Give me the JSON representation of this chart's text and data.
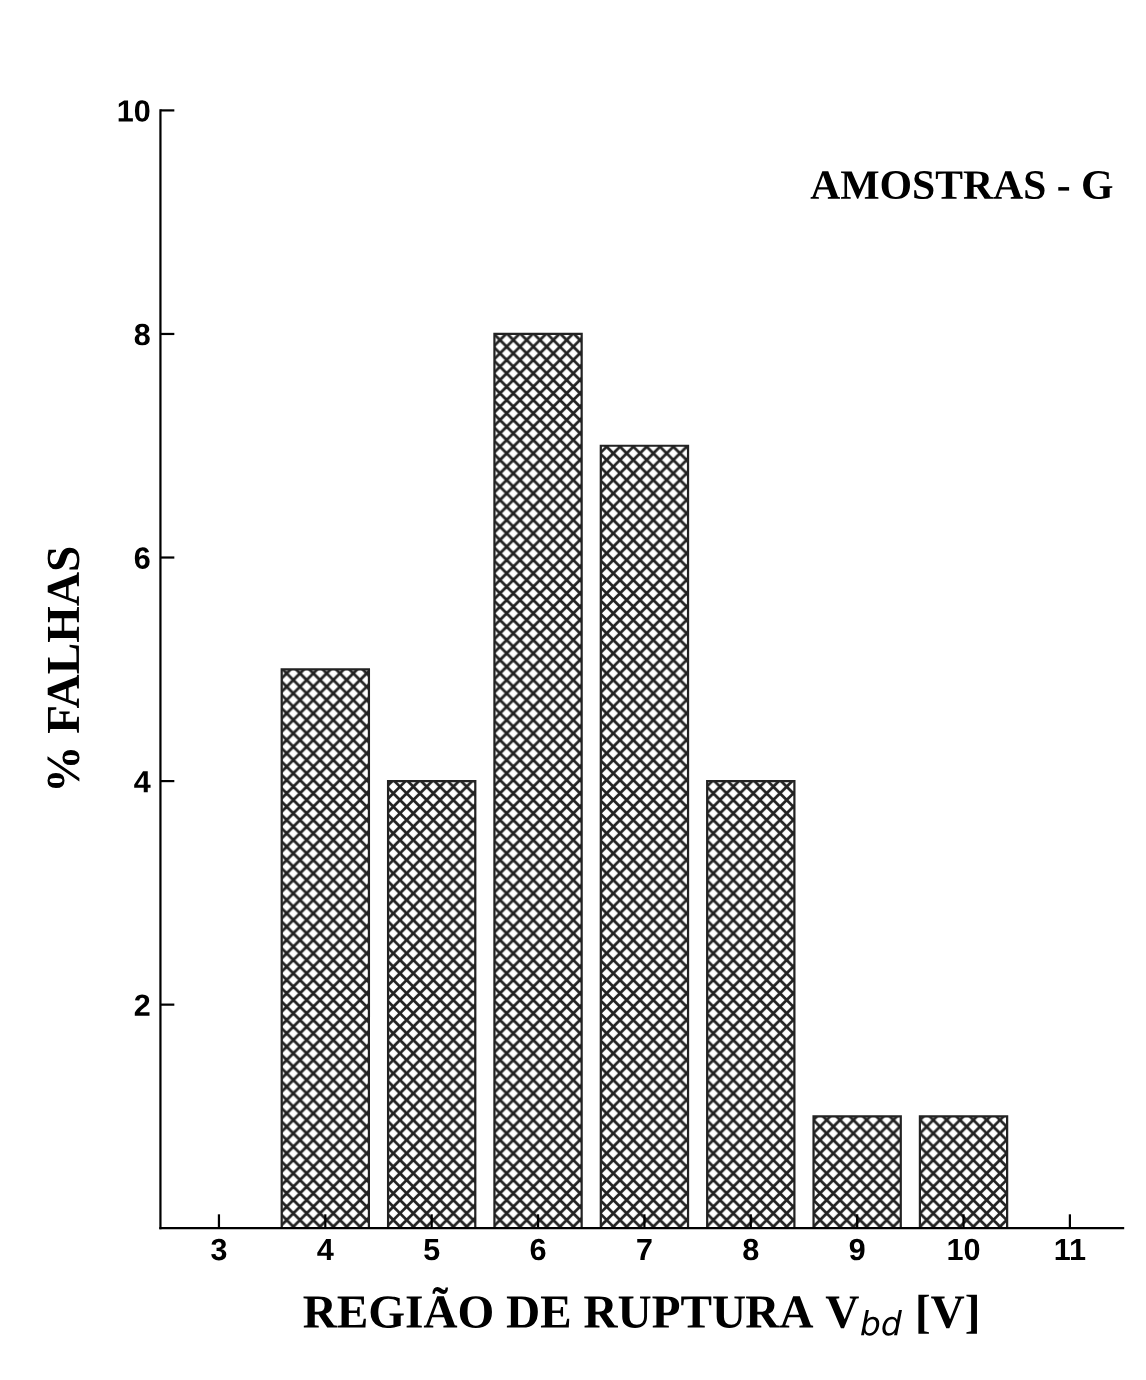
{
  "chart_data": {
    "type": "bar",
    "title": "AMOSTRAS - G",
    "xlabel": "REGIÃO DE RUPTURA V$_{bd}$ [V]",
    "ylabel": "% FALHAS",
    "x": [
      4,
      5,
      6,
      7,
      8,
      9,
      10
    ],
    "values": [
      5,
      4,
      8,
      7,
      4,
      1,
      1
    ],
    "color": "#222222",
    "xlim": [
      2.45,
      11.5
    ],
    "xticks": [
      3,
      4,
      5,
      6,
      7,
      8,
      9,
      10,
      11
    ],
    "ylim": [
      0,
      10
    ],
    "yticks": [
      2,
      4,
      6,
      8,
      10
    ],
    "grid": false,
    "legend": false
  }
}
